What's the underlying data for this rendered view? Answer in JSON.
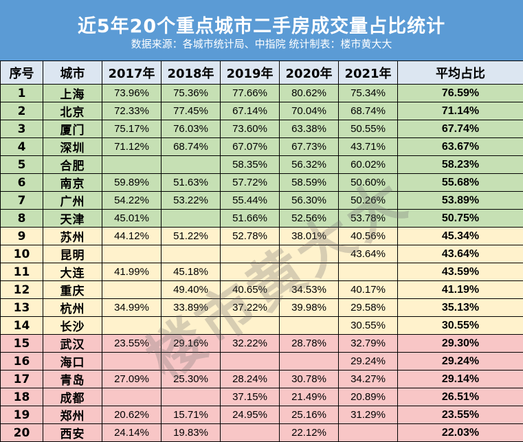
{
  "title": "近5年20个重点城市二手房成交量占比统计",
  "subtitle": "数据来源：各城市统计局、中指院 统计制表：楼市黄大大",
  "watermark": "楼市黄大大",
  "colors": {
    "header": "#5b9bd5",
    "green": "#c6e0b4",
    "yellow": "#fff2cc",
    "red": "#f8c6c6"
  },
  "columns": [
    "序号",
    "城市",
    "2017年",
    "2018年",
    "2019年",
    "2020年",
    "2021年",
    "平均占比"
  ],
  "rows": [
    {
      "no": "1",
      "city": "上海",
      "y2017": "73.96%",
      "y2018": "75.36%",
      "y2019": "77.66%",
      "y2020": "80.62%",
      "y2021": "75.34%",
      "avg": "76.59%",
      "band": "green"
    },
    {
      "no": "2",
      "city": "北京",
      "y2017": "72.33%",
      "y2018": "77.45%",
      "y2019": "67.14%",
      "y2020": "70.04%",
      "y2021": "68.74%",
      "avg": "71.14%",
      "band": "green"
    },
    {
      "no": "3",
      "city": "厦门",
      "y2017": "75.17%",
      "y2018": "76.03%",
      "y2019": "73.60%",
      "y2020": "63.38%",
      "y2021": "50.55%",
      "avg": "67.74%",
      "band": "green"
    },
    {
      "no": "4",
      "city": "深圳",
      "y2017": "71.12%",
      "y2018": "68.74%",
      "y2019": "67.07%",
      "y2020": "67.73%",
      "y2021": "43.71%",
      "avg": "63.67%",
      "band": "green"
    },
    {
      "no": "5",
      "city": "合肥",
      "y2017": "",
      "y2018": "",
      "y2019": "58.35%",
      "y2020": "56.32%",
      "y2021": "60.02%",
      "avg": "58.23%",
      "band": "green"
    },
    {
      "no": "6",
      "city": "南京",
      "y2017": "59.89%",
      "y2018": "51.63%",
      "y2019": "57.72%",
      "y2020": "58.59%",
      "y2021": "50.60%",
      "avg": "55.68%",
      "band": "green"
    },
    {
      "no": "7",
      "city": "广州",
      "y2017": "54.22%",
      "y2018": "53.22%",
      "y2019": "55.44%",
      "y2020": "56.30%",
      "y2021": "50.26%",
      "avg": "53.89%",
      "band": "green"
    },
    {
      "no": "8",
      "city": "天津",
      "y2017": "45.01%",
      "y2018": "",
      "y2019": "51.66%",
      "y2020": "52.56%",
      "y2021": "53.78%",
      "avg": "50.75%",
      "band": "green"
    },
    {
      "no": "9",
      "city": "苏州",
      "y2017": "44.12%",
      "y2018": "51.22%",
      "y2019": "52.78%",
      "y2020": "38.01%",
      "y2021": "40.56%",
      "avg": "45.34%",
      "band": "yellow"
    },
    {
      "no": "10",
      "city": "昆明",
      "y2017": "",
      "y2018": "",
      "y2019": "",
      "y2020": "",
      "y2021": "43.64%",
      "avg": "43.64%",
      "band": "yellow"
    },
    {
      "no": "11",
      "city": "大连",
      "y2017": "41.99%",
      "y2018": "45.18%",
      "y2019": "",
      "y2020": "",
      "y2021": "",
      "avg": "43.59%",
      "band": "yellow"
    },
    {
      "no": "12",
      "city": "重庆",
      "y2017": "",
      "y2018": "49.40%",
      "y2019": "40.65%",
      "y2020": "34.53%",
      "y2021": "40.17%",
      "avg": "41.19%",
      "band": "yellow"
    },
    {
      "no": "13",
      "city": "杭州",
      "y2017": "34.99%",
      "y2018": "33.89%",
      "y2019": "37.22%",
      "y2020": "39.98%",
      "y2021": "29.58%",
      "avg": "35.13%",
      "band": "yellow"
    },
    {
      "no": "14",
      "city": "长沙",
      "y2017": "",
      "y2018": "",
      "y2019": "",
      "y2020": "",
      "y2021": "30.55%",
      "avg": "30.55%",
      "band": "yellow"
    },
    {
      "no": "15",
      "city": "武汉",
      "y2017": "23.55%",
      "y2018": "29.16%",
      "y2019": "32.22%",
      "y2020": "28.78%",
      "y2021": "32.79%",
      "avg": "29.30%",
      "band": "red"
    },
    {
      "no": "16",
      "city": "海口",
      "y2017": "",
      "y2018": "",
      "y2019": "",
      "y2020": "",
      "y2021": "29.24%",
      "avg": "29.24%",
      "band": "red"
    },
    {
      "no": "17",
      "city": "青岛",
      "y2017": "27.09%",
      "y2018": "25.30%",
      "y2019": "28.24%",
      "y2020": "30.78%",
      "y2021": "34.27%",
      "avg": "29.14%",
      "band": "red"
    },
    {
      "no": "18",
      "city": "成都",
      "y2017": "",
      "y2018": "",
      "y2019": "37.15%",
      "y2020": "21.49%",
      "y2021": "20.89%",
      "avg": "26.51%",
      "band": "red"
    },
    {
      "no": "19",
      "city": "郑州",
      "y2017": "20.62%",
      "y2018": "15.71%",
      "y2019": "24.95%",
      "y2020": "25.16%",
      "y2021": "31.29%",
      "avg": "23.55%",
      "band": "red"
    },
    {
      "no": "20",
      "city": "西安",
      "y2017": "24.14%",
      "y2018": "19.83%",
      "y2019": "",
      "y2020": "22.12%",
      "y2021": "",
      "avg": "22.03%",
      "band": "red"
    }
  ]
}
